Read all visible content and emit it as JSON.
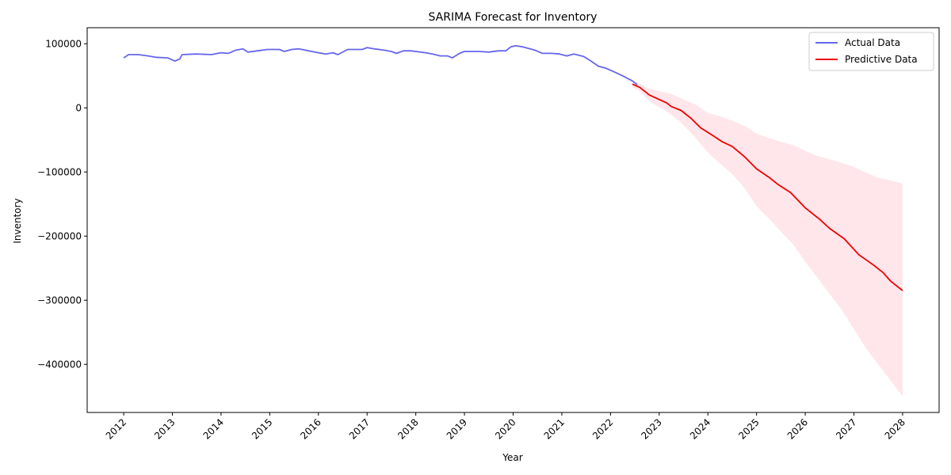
{
  "chart_data": {
    "type": "line",
    "title": "SARIMA Forecast for Inventory",
    "xlabel": "Year",
    "ylabel": "Inventory",
    "x_range": [
      2011.25,
      2028.75
    ],
    "ylim": [
      -475000,
      125000
    ],
    "x_ticks": [
      2012,
      2013,
      2014,
      2015,
      2016,
      2017,
      2018,
      2019,
      2020,
      2021,
      2022,
      2023,
      2024,
      2025,
      2026,
      2027,
      2028
    ],
    "x_tick_labels": [
      "2012",
      "2013",
      "2014",
      "2015",
      "2016",
      "2017",
      "2018",
      "2019",
      "2020",
      "2021",
      "2022",
      "2023",
      "2024",
      "2025",
      "2026",
      "2027",
      "2028"
    ],
    "y_ticks": [
      100000,
      0,
      -100000,
      -200000,
      -300000,
      -400000
    ],
    "y_tick_labels": [
      "100000",
      "0",
      "−100000",
      "−200000",
      "−300000",
      "−400000"
    ],
    "legend_position": "top-right",
    "grid": false,
    "series": [
      {
        "name": "Actual Data",
        "color": "#6666ee",
        "points": [
          [
            2012.0,
            78000
          ],
          [
            2012.1,
            83000
          ],
          [
            2012.3,
            83000
          ],
          [
            2012.5,
            81000
          ],
          [
            2012.65,
            79000
          ],
          [
            2012.9,
            78000
          ],
          [
            2013.05,
            73000
          ],
          [
            2013.15,
            76000
          ],
          [
            2013.2,
            83000
          ],
          [
            2013.5,
            84000
          ],
          [
            2013.8,
            83000
          ],
          [
            2014.0,
            86000
          ],
          [
            2014.15,
            85000
          ],
          [
            2014.3,
            90000
          ],
          [
            2014.45,
            92000
          ],
          [
            2014.55,
            87000
          ],
          [
            2014.75,
            89000
          ],
          [
            2014.95,
            91000
          ],
          [
            2015.2,
            91000
          ],
          [
            2015.3,
            88000
          ],
          [
            2015.45,
            91000
          ],
          [
            2015.6,
            92000
          ],
          [
            2015.8,
            89000
          ],
          [
            2016.0,
            86000
          ],
          [
            2016.15,
            84000
          ],
          [
            2016.3,
            86000
          ],
          [
            2016.4,
            83000
          ],
          [
            2016.6,
            91000
          ],
          [
            2016.75,
            91000
          ],
          [
            2016.9,
            91000
          ],
          [
            2017.0,
            94000
          ],
          [
            2017.15,
            92000
          ],
          [
            2017.35,
            90000
          ],
          [
            2017.5,
            88000
          ],
          [
            2017.6,
            85000
          ],
          [
            2017.75,
            89000
          ],
          [
            2017.9,
            89000
          ],
          [
            2018.2,
            86000
          ],
          [
            2018.35,
            84000
          ],
          [
            2018.5,
            81000
          ],
          [
            2018.65,
            81000
          ],
          [
            2018.75,
            78000
          ],
          [
            2018.9,
            85000
          ],
          [
            2019.0,
            88000
          ],
          [
            2019.3,
            88000
          ],
          [
            2019.5,
            87000
          ],
          [
            2019.7,
            89000
          ],
          [
            2019.85,
            89000
          ],
          [
            2019.95,
            95000
          ],
          [
            2020.05,
            97000
          ],
          [
            2020.2,
            95000
          ],
          [
            2020.45,
            90000
          ],
          [
            2020.6,
            85000
          ],
          [
            2020.8,
            85000
          ],
          [
            2020.95,
            84000
          ],
          [
            2021.1,
            81000
          ],
          [
            2021.25,
            84000
          ],
          [
            2021.45,
            80000
          ],
          [
            2021.6,
            73000
          ],
          [
            2021.75,
            65000
          ],
          [
            2021.9,
            62000
          ],
          [
            2022.05,
            57000
          ],
          [
            2022.25,
            50000
          ],
          [
            2022.45,
            42000
          ],
          [
            2022.55,
            36000
          ]
        ]
      },
      {
        "name": "Predictive Data",
        "color": "#ee0000",
        "points": [
          [
            2022.45,
            37000
          ],
          [
            2022.6,
            32000
          ],
          [
            2022.8,
            20000
          ],
          [
            2023.0,
            13000
          ],
          [
            2023.15,
            8000
          ],
          [
            2023.25,
            2000
          ],
          [
            2023.45,
            -4000
          ],
          [
            2023.65,
            -16000
          ],
          [
            2023.85,
            -31000
          ],
          [
            2024.1,
            -43000
          ],
          [
            2024.3,
            -53000
          ],
          [
            2024.5,
            -60000
          ],
          [
            2024.75,
            -76000
          ],
          [
            2025.0,
            -95000
          ],
          [
            2025.25,
            -108000
          ],
          [
            2025.45,
            -120000
          ],
          [
            2025.7,
            -132000
          ],
          [
            2026.0,
            -156000
          ],
          [
            2026.3,
            -174000
          ],
          [
            2026.5,
            -188000
          ],
          [
            2026.8,
            -204000
          ],
          [
            2027.1,
            -229000
          ],
          [
            2027.4,
            -245000
          ],
          [
            2027.6,
            -257000
          ],
          [
            2027.75,
            -270000
          ],
          [
            2028.0,
            -285000
          ]
        ]
      }
    ],
    "confidence_band": {
      "color": "#ffc0cb",
      "opacity": 0.4,
      "upper": [
        [
          2022.45,
          42000
        ],
        [
          2022.6,
          38000
        ],
        [
          2022.8,
          30000
        ],
        [
          2023.0,
          26000
        ],
        [
          2023.2,
          23000
        ],
        [
          2023.45,
          15000
        ],
        [
          2023.75,
          5000
        ],
        [
          2024.0,
          -8000
        ],
        [
          2024.25,
          -13000
        ],
        [
          2024.5,
          -20000
        ],
        [
          2024.75,
          -28000
        ],
        [
          2025.0,
          -40000
        ],
        [
          2025.25,
          -47000
        ],
        [
          2025.5,
          -53000
        ],
        [
          2025.75,
          -58000
        ],
        [
          2026.0,
          -67000
        ],
        [
          2026.25,
          -75000
        ],
        [
          2026.5,
          -80000
        ],
        [
          2026.75,
          -86000
        ],
        [
          2027.0,
          -92000
        ],
        [
          2027.25,
          -101000
        ],
        [
          2027.5,
          -109000
        ],
        [
          2027.75,
          -113000
        ],
        [
          2028.0,
          -118000
        ]
      ],
      "lower": [
        [
          2022.45,
          33000
        ],
        [
          2022.6,
          26000
        ],
        [
          2022.8,
          10000
        ],
        [
          2023.0,
          1000
        ],
        [
          2023.2,
          -8000
        ],
        [
          2023.45,
          -23000
        ],
        [
          2023.75,
          -47000
        ],
        [
          2024.0,
          -70000
        ],
        [
          2024.25,
          -87000
        ],
        [
          2024.5,
          -103000
        ],
        [
          2024.75,
          -125000
        ],
        [
          2025.0,
          -153000
        ],
        [
          2025.25,
          -172000
        ],
        [
          2025.5,
          -193000
        ],
        [
          2025.75,
          -213000
        ],
        [
          2026.0,
          -240000
        ],
        [
          2026.25,
          -265000
        ],
        [
          2026.5,
          -290000
        ],
        [
          2026.75,
          -315000
        ],
        [
          2027.0,
          -345000
        ],
        [
          2027.25,
          -375000
        ],
        [
          2027.5,
          -400000
        ],
        [
          2027.75,
          -425000
        ],
        [
          2028.0,
          -450000
        ]
      ]
    }
  }
}
